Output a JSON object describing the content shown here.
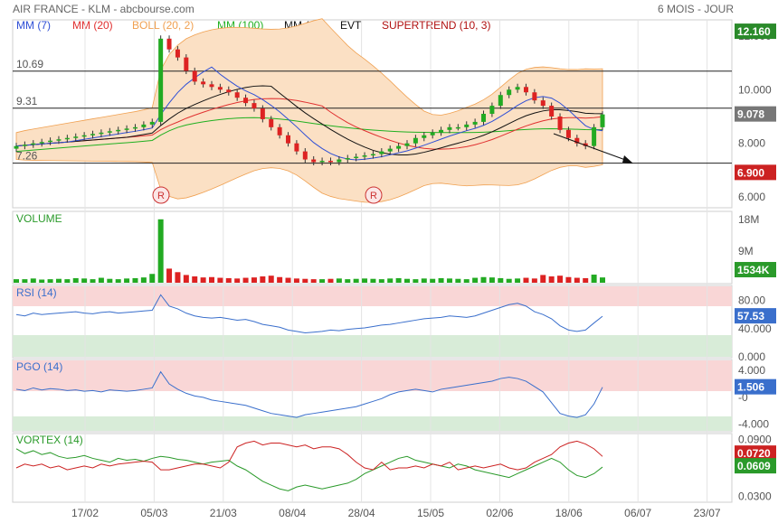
{
  "header": {
    "title": "AIR FRANCE - KLM - abcbourse.com",
    "period": "6 MOIS - JOUR"
  },
  "legend": [
    {
      "label": "MM (7)",
      "color": "#2f4fd6"
    },
    {
      "label": "MM (20)",
      "color": "#e03030"
    },
    {
      "label": "BOLL (20, 2)",
      "color": "#f0a050"
    },
    {
      "label": "MM (100)",
      "color": "#20b020"
    },
    {
      "label": "MM (14)",
      "color": "#111111"
    },
    {
      "label": "EVT",
      "color": "#111111"
    },
    {
      "label": "SUPERTREND (10, 3)",
      "color": "#b01010"
    }
  ],
  "panels": {
    "volume_label": "VOLUME",
    "rsi_label": "RSI (14)",
    "pgo_label": "PGO (14)",
    "vortex_label": "VORTEX (14)"
  },
  "price_levels": [
    {
      "label": "10.69",
      "value": 10.69
    },
    {
      "label": "9.31",
      "value": 9.31
    },
    {
      "label": "7.26",
      "value": 7.26
    }
  ],
  "markers": [
    "R",
    "R"
  ],
  "x_labels": [
    "17/02",
    "05/03",
    "21/03",
    "08/04",
    "28/04",
    "15/05",
    "02/06",
    "18/06",
    "06/07",
    "23/07"
  ],
  "price_axis": [
    "12.000",
    "10.000",
    "8.000",
    "6.000"
  ],
  "price_tags": {
    "top": "12.160",
    "last": "9.078",
    "stop": "6.900"
  },
  "volume_axis": [
    "18M",
    "9M"
  ],
  "volume_tag": "1534K",
  "rsi_axis": [
    "80.00",
    "40.000",
    "0.000"
  ],
  "rsi_tag": "57.53",
  "pgo_axis": [
    "4.000",
    "-0",
    "-4.000"
  ],
  "pgo_tag": "1.506",
  "vortex_axis": [
    "0.0900",
    "0.0300"
  ],
  "vortex_tags": [
    "0.0720",
    "0.0609"
  ],
  "colors": {
    "up": "#22aa22",
    "down": "#dd2222",
    "panel_pink": "#f9d6d6",
    "panel_green": "#d8ecd8",
    "blue": "#3a6fcc",
    "boll_fill": "#fbe0c4"
  },
  "chart_data": [
    {
      "type": "candlestick",
      "title": "AIR FRANCE - KLM",
      "x": [
        "17/02",
        "05/03",
        "21/03",
        "08/04",
        "28/04",
        "15/05",
        "02/06",
        "18/06",
        "06/07",
        "23/07"
      ],
      "ylim": [
        5.6,
        12.6
      ],
      "key_values": {
        "high": 12.16,
        "last": 9.078,
        "supertrend": 6.9
      },
      "horizontal_levels": [
        10.69,
        9.31,
        7.26
      ],
      "closes": [
        7.9,
        7.95,
        8.0,
        8.05,
        8.1,
        8.15,
        8.2,
        8.25,
        8.3,
        8.35,
        8.4,
        8.45,
        8.5,
        8.55,
        8.6,
        8.7,
        8.8,
        11.9,
        11.5,
        11.2,
        10.7,
        10.3,
        10.2,
        10.1,
        10.0,
        9.9,
        9.7,
        9.5,
        9.3,
        8.9,
        8.6,
        8.3,
        8.0,
        7.7,
        7.4,
        7.3,
        7.35,
        7.3,
        7.4,
        7.45,
        7.5,
        7.55,
        7.6,
        7.7,
        7.8,
        7.9,
        8.0,
        8.2,
        8.3,
        8.4,
        8.5,
        8.6,
        8.6,
        8.7,
        8.8,
        9.1,
        9.4,
        9.8,
        10.0,
        10.1,
        9.9,
        9.6,
        9.4,
        9.0,
        8.5,
        8.2,
        8.0,
        7.9,
        8.6,
        9.078
      ]
    },
    {
      "type": "bar",
      "title": "VOLUME",
      "ylim": [
        0,
        20
      ],
      "unit": "M",
      "last": "1534K",
      "values": [
        1,
        1,
        1.2,
        0.9,
        1,
        1.1,
        1,
        1.3,
        1.2,
        1,
        1.4,
        1.1,
        1,
        1.2,
        1.3,
        1.5,
        2.5,
        18,
        4,
        3,
        2.2,
        1.8,
        1.5,
        1.6,
        1.4,
        1.3,
        1.2,
        1.4,
        1.5,
        1.8,
        2,
        1.6,
        1.4,
        1.2,
        1.1,
        1,
        1,
        1.1,
        1.2,
        1,
        1.1,
        1.2,
        1.1,
        1,
        1.2,
        1.3,
        1.1,
        1,
        1.2,
        1.1,
        1.3,
        1.2,
        1.1,
        1,
        1.4,
        1.6,
        1.5,
        1.3,
        1.1,
        1.2,
        1.4,
        1.2,
        2.2,
        1.8,
        2,
        1.6,
        1.4,
        1.3,
        2.3,
        1.5
      ]
    },
    {
      "type": "line",
      "title": "RSI (14)",
      "ylim": [
        0,
        100
      ],
      "last": 57.53,
      "values": [
        60,
        58,
        62,
        60,
        61,
        62,
        63,
        64,
        62,
        61,
        63,
        64,
        62,
        63,
        64,
        65,
        66,
        88,
        72,
        68,
        62,
        58,
        56,
        55,
        56,
        54,
        52,
        53,
        50,
        46,
        44,
        42,
        38,
        36,
        34,
        35,
        36,
        38,
        37,
        39,
        40,
        41,
        43,
        45,
        46,
        48,
        50,
        52,
        54,
        55,
        56,
        58,
        57,
        56,
        58,
        62,
        66,
        70,
        74,
        76,
        72,
        64,
        60,
        54,
        44,
        38,
        36,
        38,
        48,
        57.53
      ]
    },
    {
      "type": "line",
      "title": "PGO (14)",
      "ylim": [
        -5,
        5.5
      ],
      "last": 1.506,
      "values": [
        1.2,
        1.0,
        1.4,
        1.1,
        1.3,
        1.2,
        1.0,
        1.1,
        0.9,
        1.0,
        0.8,
        1.1,
        1.0,
        0.9,
        1.0,
        1.2,
        1.4,
        3.8,
        2.0,
        1.2,
        0.6,
        0.2,
        0.0,
        -0.4,
        -0.6,
        -0.8,
        -1.0,
        -1.2,
        -1.6,
        -2.0,
        -2.4,
        -2.6,
        -2.8,
        -3.0,
        -2.6,
        -2.4,
        -2.2,
        -2.0,
        -1.8,
        -1.6,
        -1.4,
        -1.0,
        -0.6,
        -0.2,
        0.4,
        0.8,
        1.0,
        1.2,
        1.0,
        0.8,
        1.2,
        1.4,
        1.6,
        1.8,
        2.0,
        2.2,
        2.4,
        2.8,
        3.0,
        2.8,
        2.4,
        1.6,
        0.8,
        -0.8,
        -2.4,
        -2.8,
        -3.0,
        -2.6,
        -1.0,
        1.506
      ]
    },
    {
      "type": "line",
      "title": "VORTEX (14)",
      "ylim": [
        0.025,
        0.095
      ],
      "series": [
        {
          "values": [
            0.08,
            0.075,
            0.078,
            0.074,
            0.076,
            0.072,
            0.07,
            0.071,
            0.073,
            0.07,
            0.068,
            0.066,
            0.07,
            0.068,
            0.069,
            0.067,
            0.07,
            0.072,
            0.071,
            0.069,
            0.068,
            0.066,
            0.064,
            0.066,
            0.067,
            0.068,
            0.062,
            0.058,
            0.052,
            0.046,
            0.042,
            0.038,
            0.036,
            0.04,
            0.042,
            0.04,
            0.038,
            0.04,
            0.042,
            0.044,
            0.048,
            0.054,
            0.058,
            0.062,
            0.066,
            0.07,
            0.072,
            0.068,
            0.066,
            0.064,
            0.062,
            0.06,
            0.064,
            0.062,
            0.058,
            0.056,
            0.054,
            0.052,
            0.05,
            0.054,
            0.058,
            0.062,
            0.066,
            0.07,
            0.066,
            0.058,
            0.052,
            0.05,
            0.054,
            0.0609
          ],
          "color": "#2a9a2a"
        },
        {
          "values": [
            0.06,
            0.064,
            0.062,
            0.064,
            0.06,
            0.062,
            0.058,
            0.06,
            0.062,
            0.06,
            0.064,
            0.062,
            0.064,
            0.065,
            0.066,
            0.067,
            0.066,
            0.058,
            0.058,
            0.06,
            0.062,
            0.064,
            0.064,
            0.062,
            0.06,
            0.066,
            0.082,
            0.086,
            0.088,
            0.084,
            0.086,
            0.086,
            0.084,
            0.082,
            0.084,
            0.08,
            0.082,
            0.082,
            0.08,
            0.074,
            0.066,
            0.06,
            0.058,
            0.066,
            0.058,
            0.06,
            0.06,
            0.062,
            0.06,
            0.064,
            0.062,
            0.066,
            0.058,
            0.06,
            0.062,
            0.06,
            0.062,
            0.064,
            0.06,
            0.058,
            0.06,
            0.066,
            0.07,
            0.074,
            0.082,
            0.086,
            0.088,
            0.085,
            0.08,
            0.072
          ],
          "color": "#cc2222"
        }
      ]
    }
  ]
}
